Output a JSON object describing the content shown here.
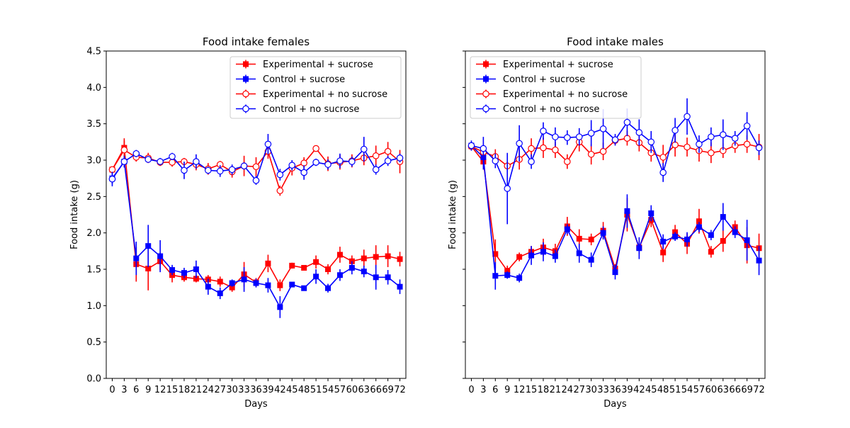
{
  "figure": {
    "ylabel": "Food intake (g)",
    "xlabel": "Days"
  },
  "legend_labels": [
    "Experimental + sucrose",
    "Control + sucrose",
    "Experimental + no sucrose",
    "Control + no sucrose"
  ],
  "colors": {
    "red": "#ff0000",
    "blue": "#0000ff"
  },
  "chart_data": [
    {
      "type": "line",
      "title": "Food intake females",
      "xlabel": "Days",
      "ylabel": "Food intake (g)",
      "x": [
        0,
        3,
        6,
        9,
        12,
        15,
        18,
        21,
        24,
        27,
        30,
        33,
        36,
        39,
        42,
        45,
        48,
        51,
        54,
        57,
        60,
        63,
        66,
        69,
        72
      ],
      "xlim": [
        -1.5,
        73.5
      ],
      "ylim": [
        0,
        4.5
      ],
      "yticks": [
        0.0,
        0.5,
        1.0,
        1.5,
        2.0,
        2.5,
        3.0,
        3.5,
        4.0,
        4.5
      ],
      "legend_position": "upper right",
      "series": [
        {
          "name": "Experimental + sucrose",
          "color": "#ff0000",
          "marker": "filled-square",
          "values": [
            2.87,
            3.17,
            1.57,
            1.51,
            1.61,
            1.42,
            1.39,
            1.37,
            1.36,
            1.33,
            1.25,
            1.43,
            1.32,
            1.58,
            1.28,
            1.55,
            1.52,
            1.6,
            1.5,
            1.7,
            1.61,
            1.65,
            1.67,
            1.68,
            1.64
          ],
          "err": [
            0.04,
            0.13,
            0.24,
            0.3,
            0.12,
            0.1,
            0.06,
            0.05,
            0.06,
            0.07,
            0.06,
            0.17,
            0.06,
            0.12,
            0.08,
            0.04,
            0.03,
            0.09,
            0.07,
            0.11,
            0.08,
            0.12,
            0.16,
            0.15,
            0.1
          ]
        },
        {
          "name": "Control + sucrose",
          "color": "#0000ff",
          "marker": "filled-square",
          "values": [
            2.75,
            2.98,
            1.65,
            1.82,
            1.68,
            1.49,
            1.45,
            1.5,
            1.26,
            1.17,
            1.31,
            1.36,
            1.31,
            1.28,
            0.98,
            1.29,
            1.24,
            1.4,
            1.24,
            1.42,
            1.52,
            1.47,
            1.39,
            1.39,
            1.26
          ],
          "err": [
            0.08,
            0.08,
            0.23,
            0.29,
            0.22,
            0.07,
            0.07,
            0.12,
            0.11,
            0.08,
            0.05,
            0.17,
            0.06,
            0.1,
            0.15,
            0.03,
            0.03,
            0.1,
            0.06,
            0.08,
            0.09,
            0.08,
            0.17,
            0.1,
            0.1
          ]
        },
        {
          "name": "Experimental + no sucrose",
          "color": "#ff0000",
          "marker": "open-circle",
          "values": [
            2.87,
            3.14,
            3.04,
            3.03,
            2.97,
            2.97,
            2.98,
            2.94,
            2.88,
            2.94,
            2.84,
            2.92,
            2.91,
            3.12,
            2.58,
            2.89,
            2.96,
            3.16,
            2.95,
            2.97,
            2.99,
            3.03,
            3.06,
            3.12,
            2.98
          ],
          "err": [
            0.04,
            0.13,
            0.06,
            0.07,
            0.05,
            0.06,
            0.05,
            0.08,
            0.08,
            0.05,
            0.08,
            0.14,
            0.13,
            0.1,
            0.07,
            0.1,
            0.08,
            0.04,
            0.1,
            0.1,
            0.09,
            0.1,
            0.14,
            0.13,
            0.16
          ]
        },
        {
          "name": "Control + no sucrose",
          "color": "#0000ff",
          "marker": "open-circle",
          "values": [
            2.74,
            2.98,
            3.09,
            3.01,
            2.98,
            3.05,
            2.86,
            2.98,
            2.86,
            2.85,
            2.87,
            2.92,
            2.72,
            3.22,
            2.8,
            2.93,
            2.83,
            2.97,
            2.94,
            2.99,
            2.98,
            3.15,
            2.87,
            2.99,
            3.03
          ],
          "err": [
            0.1,
            0.08,
            0.05,
            0.04,
            0.05,
            0.05,
            0.12,
            0.1,
            0.05,
            0.08,
            0.07,
            0.05,
            0.06,
            0.14,
            0.08,
            0.07,
            0.1,
            0.05,
            0.07,
            0.1,
            0.07,
            0.17,
            0.07,
            0.07,
            0.06
          ]
        }
      ]
    },
    {
      "type": "line",
      "title": "Food intake males",
      "xlabel": "Days",
      "ylabel": "Food intake (g)",
      "x": [
        0,
        3,
        6,
        9,
        12,
        15,
        18,
        21,
        24,
        27,
        30,
        33,
        36,
        39,
        42,
        45,
        48,
        51,
        54,
        57,
        60,
        63,
        66,
        69,
        72
      ],
      "xlim": [
        -1.5,
        73.5
      ],
      "ylim": [
        0,
        4.5
      ],
      "yticks": [
        0.0,
        0.5,
        1.0,
        1.5,
        2.0,
        2.5,
        3.0,
        3.5,
        4.0,
        4.5
      ],
      "legend_position": "upper left",
      "series": [
        {
          "name": "Experimental + sucrose",
          "color": "#ff0000",
          "marker": "filled-square",
          "values": [
            3.19,
            2.98,
            1.71,
            1.48,
            1.67,
            1.74,
            1.8,
            1.75,
            2.09,
            1.92,
            1.91,
            2.03,
            1.51,
            2.25,
            1.8,
            2.18,
            1.73,
            2.01,
            1.85,
            2.16,
            1.74,
            1.89,
            2.08,
            1.83,
            1.79
          ],
          "err": [
            0.05,
            0.05,
            0.2,
            0.07,
            0.06,
            0.08,
            0.12,
            0.1,
            0.13,
            0.13,
            0.08,
            0.12,
            0.06,
            0.23,
            0.09,
            0.1,
            0.13,
            0.1,
            0.14,
            0.17,
            0.08,
            0.15,
            0.09,
            0.25,
            0.2
          ]
        },
        {
          "name": "Control + sucrose",
          "color": "#0000ff",
          "marker": "filled-square",
          "values": [
            3.2,
            3.04,
            1.41,
            1.42,
            1.38,
            1.69,
            1.74,
            1.68,
            2.05,
            1.72,
            1.63,
            2.0,
            1.46,
            2.3,
            1.79,
            2.27,
            1.88,
            1.95,
            1.91,
            2.08,
            1.97,
            2.22,
            2.01,
            1.9,
            1.62
          ],
          "err": [
            0.05,
            0.17,
            0.19,
            0.05,
            0.06,
            0.13,
            0.13,
            0.09,
            0.07,
            0.13,
            0.1,
            0.09,
            0.1,
            0.23,
            0.15,
            0.11,
            0.1,
            0.06,
            0.1,
            0.07,
            0.07,
            0.19,
            0.08,
            0.28,
            0.2
          ]
        },
        {
          "name": "Experimental + no sucrose",
          "color": "#ff0000",
          "marker": "open-circle",
          "values": [
            3.19,
            3.11,
            3.05,
            2.92,
            3.01,
            3.16,
            3.17,
            3.14,
            2.98,
            3.25,
            3.08,
            3.12,
            3.27,
            3.3,
            3.24,
            3.1,
            3.04,
            3.21,
            3.18,
            3.13,
            3.1,
            3.13,
            3.2,
            3.22,
            3.18
          ],
          "err": [
            0.05,
            0.1,
            0.1,
            0.06,
            0.14,
            0.14,
            0.14,
            0.11,
            0.1,
            0.13,
            0.14,
            0.12,
            0.06,
            0.1,
            0.12,
            0.12,
            0.17,
            0.16,
            0.13,
            0.15,
            0.14,
            0.1,
            0.1,
            0.12,
            0.18
          ]
        },
        {
          "name": "Control + no sucrose",
          "color": "#0000ff",
          "marker": "open-circle",
          "values": [
            3.2,
            3.16,
            2.99,
            2.61,
            3.23,
            2.98,
            3.4,
            3.32,
            3.31,
            3.32,
            3.37,
            3.43,
            3.28,
            3.52,
            3.38,
            3.25,
            2.83,
            3.41,
            3.6,
            3.22,
            3.32,
            3.35,
            3.3,
            3.47,
            3.17
          ],
          "err": [
            0.07,
            0.16,
            0.1,
            0.49,
            0.25,
            0.1,
            0.12,
            0.13,
            0.1,
            0.12,
            0.18,
            0.27,
            0.08,
            0.19,
            0.18,
            0.15,
            0.13,
            0.17,
            0.25,
            0.12,
            0.13,
            0.21,
            0.1,
            0.19,
            0.1
          ]
        }
      ]
    }
  ]
}
